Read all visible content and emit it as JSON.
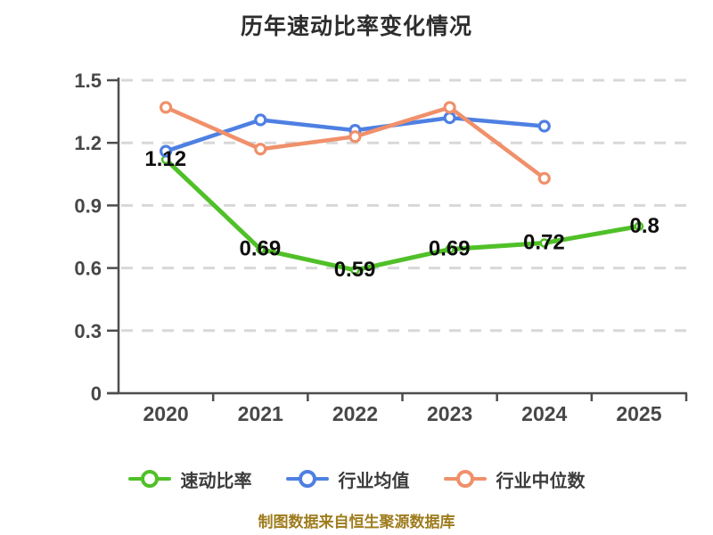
{
  "page": {
    "title": "历年速动比率变化情况",
    "footer": "制图数据来自恒生聚源数据库"
  },
  "chart_data": {
    "type": "line",
    "title": "历年速动比率变化情况",
    "categories": [
      "2020",
      "2021",
      "2022",
      "2023",
      "2024",
      "2025"
    ],
    "series": [
      {
        "name": "速动比率",
        "color": "#50c028",
        "values": [
          1.12,
          0.69,
          0.59,
          0.69,
          0.72,
          0.8
        ],
        "labels": [
          "1.12",
          "0.69",
          "0.59",
          "0.69",
          "0.72",
          "0.8"
        ],
        "line_width": 5,
        "point_radius": 4,
        "point_stroke": 2.5
      },
      {
        "name": "行业均值",
        "color": "#4e80e2",
        "values": [
          1.16,
          1.31,
          1.26,
          1.32,
          1.28,
          null
        ],
        "labels": null,
        "line_width": 4.5,
        "point_radius": 5.5,
        "point_stroke": 3.2
      },
      {
        "name": "行业中位数",
        "color": "#f0906a",
        "values": [
          1.37,
          1.17,
          1.23,
          1.37,
          1.03,
          null
        ],
        "labels": null,
        "line_width": 4.5,
        "point_radius": 5.5,
        "point_stroke": 3.2
      }
    ],
    "ylim": [
      0,
      1.5
    ],
    "y_ticks": [
      "0",
      "0.3",
      "0.6",
      "0.9",
      "1.2",
      "1.5"
    ],
    "xlabel": "",
    "ylabel": "",
    "grid": "horizontal-dashed",
    "legend_position": "bottom",
    "data_label_color": "#0e0e0e",
    "footer": "制图数据来自恒生聚源数据库"
  }
}
